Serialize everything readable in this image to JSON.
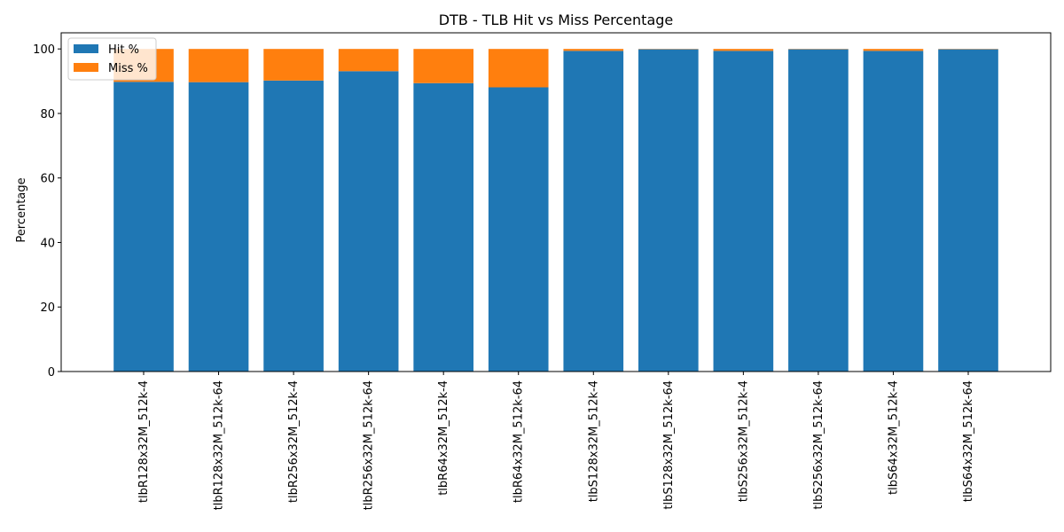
{
  "chart_data": {
    "type": "bar",
    "stacked": true,
    "title": "DTB - TLB Hit vs Miss Percentage",
    "xlabel": "",
    "ylabel": "Percentage",
    "ylim": [
      0,
      105
    ],
    "yticks": [
      0,
      20,
      40,
      60,
      80,
      100
    ],
    "categories": [
      "tlbR128x32M_512k-4",
      "tlbR128x32M_512k-64",
      "tlbR256x32M_512k-4",
      "tlbR256x32M_512k-64",
      "tlbR64x32M_512k-4",
      "tlbR64x32M_512k-64",
      "tlbS128x32M_512k-4",
      "tlbS128x32M_512k-64",
      "tlbS256x32M_512k-4",
      "tlbS256x32M_512k-64",
      "tlbS64x32M_512k-4",
      "tlbS64x32M_512k-64"
    ],
    "series": [
      {
        "name": "Hit %",
        "color": "#1f77b4",
        "values": [
          89.8,
          89.7,
          90.2,
          93.1,
          89.4,
          88.1,
          99.4,
          99.9,
          99.4,
          99.9,
          99.4,
          99.9
        ]
      },
      {
        "name": "Miss %",
        "color": "#ff7f0e",
        "values": [
          10.2,
          10.3,
          9.8,
          6.9,
          10.6,
          11.9,
          0.6,
          0.1,
          0.6,
          0.1,
          0.6,
          0.1
        ]
      }
    ],
    "legend_position": "upper-left",
    "grid": false
  }
}
